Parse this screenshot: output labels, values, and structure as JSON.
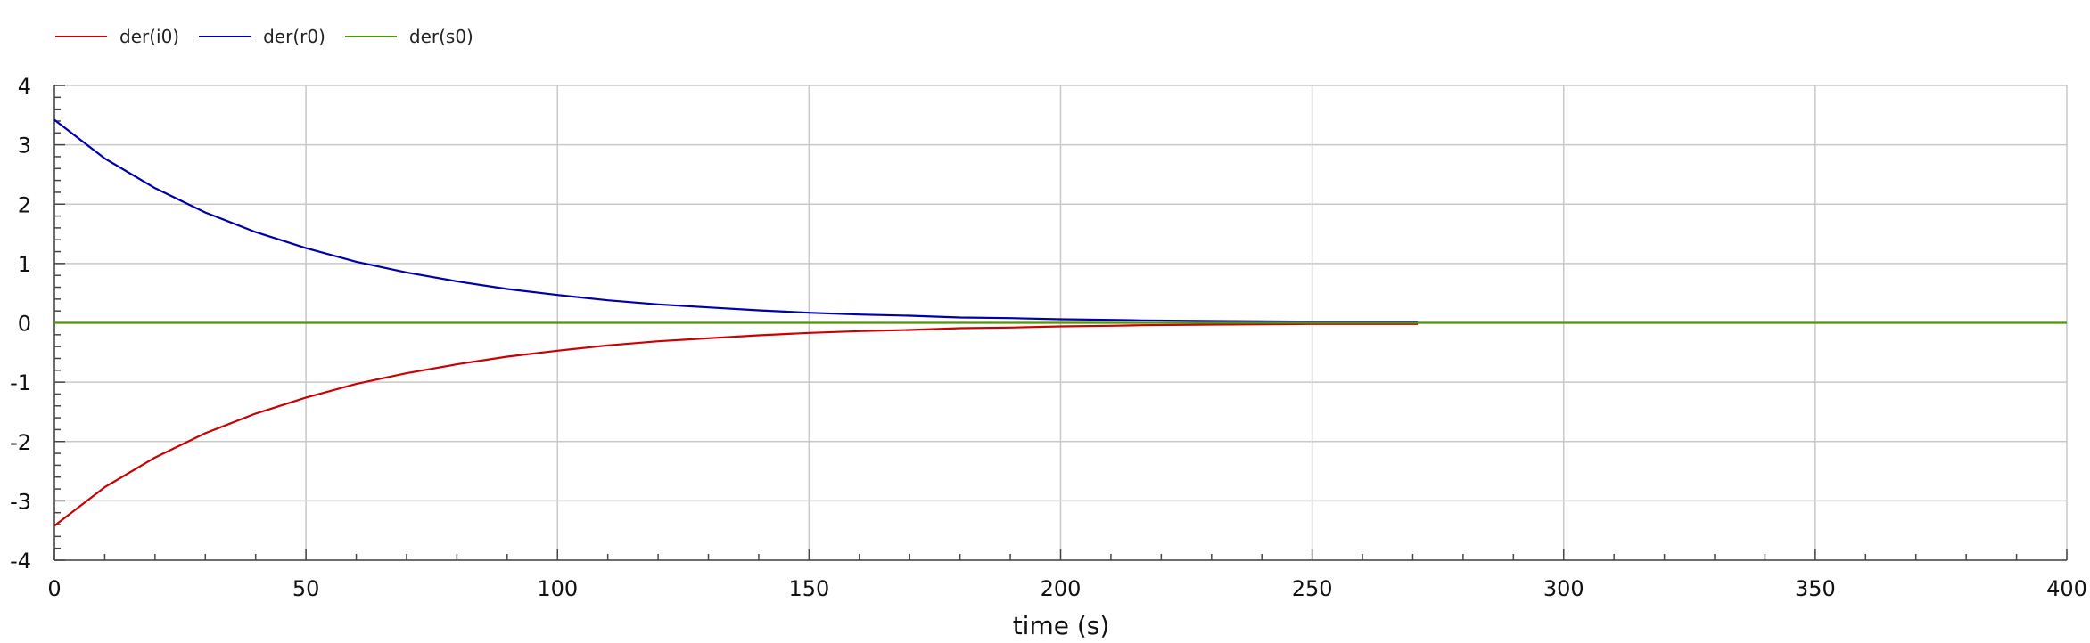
{
  "chart_data": {
    "type": "line",
    "title": "",
    "xlabel": "time (s)",
    "ylabel": "",
    "xlim": [
      0,
      400
    ],
    "ylim": [
      -4,
      4
    ],
    "xticks": [
      0,
      50,
      100,
      150,
      200,
      250,
      300,
      350,
      400
    ],
    "yticks": [
      -4,
      -3,
      -2,
      -1,
      0,
      1,
      2,
      3,
      4
    ],
    "grid": true,
    "legend_position": "top-left",
    "series": [
      {
        "name": "der(i0)",
        "color": "#cc0000",
        "x": [
          0,
          10,
          20,
          30,
          40,
          50,
          60,
          70,
          80,
          90,
          100,
          110,
          120,
          130,
          140,
          150,
          160,
          170,
          180,
          190,
          200,
          210,
          216,
          230,
          250,
          271
        ],
        "y": [
          -3.42,
          -2.77,
          -2.27,
          -1.86,
          -1.53,
          -1.26,
          -1.03,
          -0.85,
          -0.7,
          -0.57,
          -0.47,
          -0.38,
          -0.31,
          -0.26,
          -0.21,
          -0.17,
          -0.14,
          -0.12,
          -0.09,
          -0.08,
          -0.06,
          -0.05,
          -0.04,
          -0.03,
          -0.02,
          -0.02
        ]
      },
      {
        "name": "der(r0)",
        "color": "#0000aa",
        "x": [
          0,
          10,
          20,
          30,
          40,
          50,
          60,
          70,
          80,
          90,
          100,
          110,
          120,
          130,
          140,
          150,
          160,
          170,
          180,
          190,
          200,
          210,
          216,
          230,
          250,
          271
        ],
        "y": [
          3.42,
          2.77,
          2.27,
          1.86,
          1.53,
          1.26,
          1.03,
          0.85,
          0.7,
          0.57,
          0.47,
          0.38,
          0.31,
          0.26,
          0.21,
          0.17,
          0.14,
          0.12,
          0.09,
          0.08,
          0.06,
          0.05,
          0.04,
          0.03,
          0.02,
          0.02
        ]
      },
      {
        "name": "der(s0)",
        "color": "#4c9a00",
        "x": [
          0,
          400
        ],
        "y": [
          0,
          0
        ]
      }
    ]
  }
}
